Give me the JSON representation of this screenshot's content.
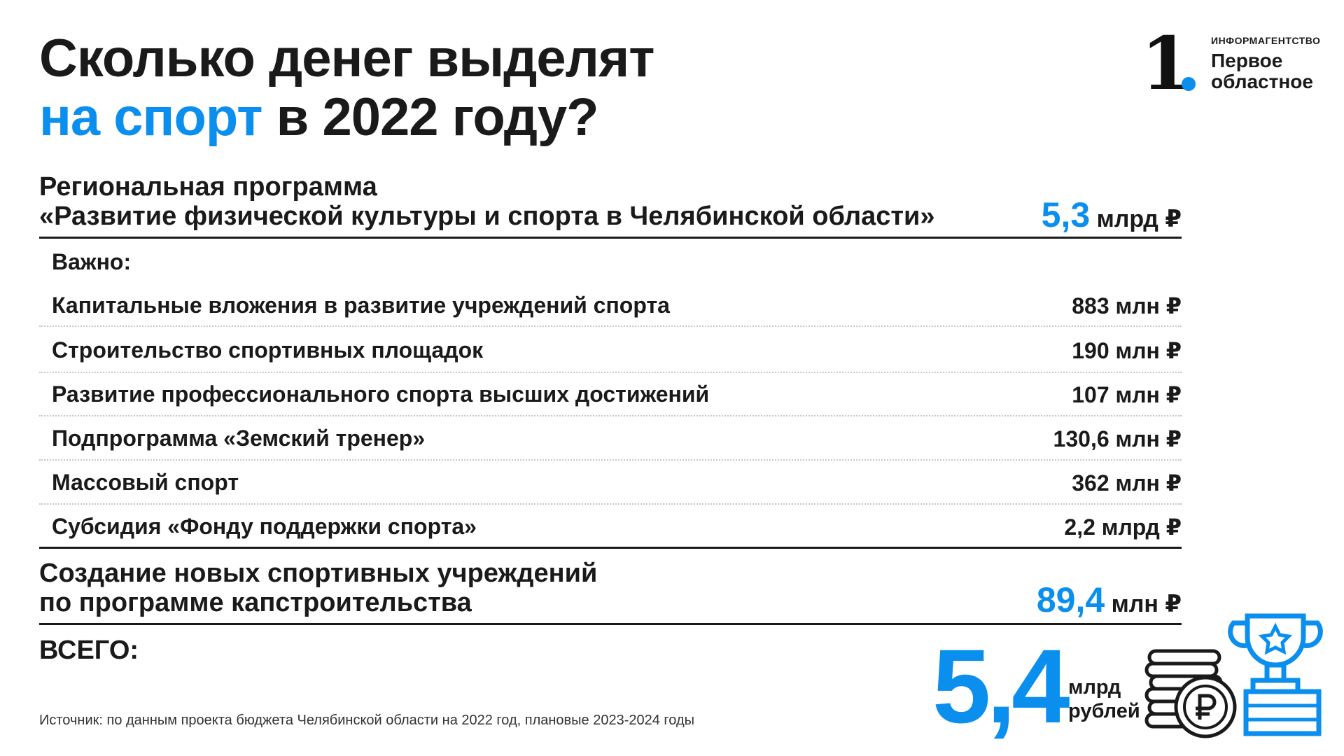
{
  "title": {
    "line1": "Сколько денег выделят",
    "line2_accent": "на спорт",
    "line2_rest": " в 2022 году?"
  },
  "logo": {
    "digit": "1",
    "agency": "ИНФОРМАГЕНТСТВО",
    "name_line1": "Первое",
    "name_line2": "областное"
  },
  "program": {
    "line1": "Региональная программа",
    "line2": "«Развитие физической культуры и спорта в Челябинской области»",
    "value_number": "5,3",
    "value_unit": " млрд ₽"
  },
  "important_label": "Важно:",
  "items": [
    {
      "label": "Капитальные вложения в развитие учреждений спорта",
      "value": "883 млн ₽"
    },
    {
      "label": "Строительство спортивных площадок",
      "value": "190 млн ₽"
    },
    {
      "label": "Развитие профессионального спорта высших достижений",
      "value": "107 млн ₽"
    },
    {
      "label": "Подпрограмма «Земский тренер»",
      "value": "130,6 млн ₽"
    },
    {
      "label": "Массовый спорт",
      "value": "362 млн ₽"
    },
    {
      "label": "Субсидия «Фонду поддержки спорта»",
      "value": "2,2 млрд ₽"
    }
  ],
  "capital": {
    "line1": "Создание новых спортивных учреждений",
    "line2": "по программе капстроительства",
    "value_number": "89,4",
    "value_unit": " млн ₽"
  },
  "total": {
    "label": "ВСЕГО:",
    "number": "5,4",
    "unit_line1": "млрд",
    "unit_line2": "рублей"
  },
  "source": "Источник: по данным проекта бюджета Челябинской области на 2022 год, плановые 2023-2024 годы",
  "icons": {
    "coins": "coin-stack-ruble-icon",
    "trophy": "trophy-star-icon"
  },
  "colors": {
    "accent": "#0b8fee",
    "text": "#1a1a1a"
  }
}
